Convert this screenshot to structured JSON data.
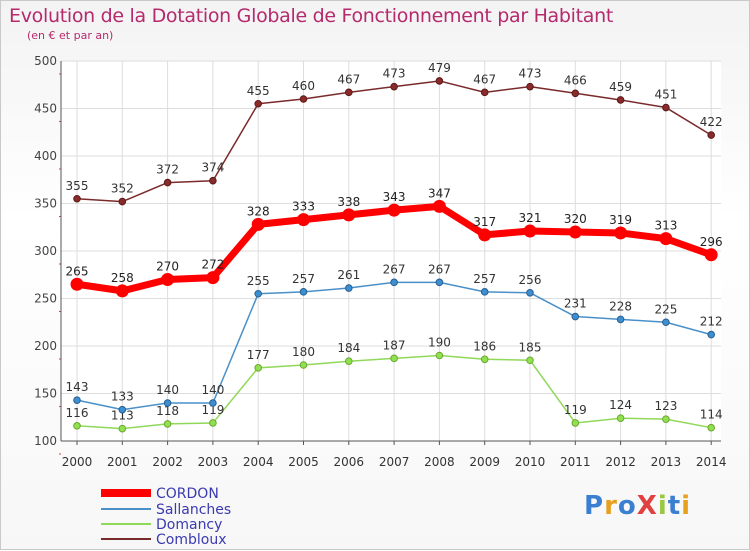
{
  "title": "Evolution de la Dotation Globale de Fonctionnement par Habitant",
  "subtitle": "(en € et par an)",
  "brand": "ProXiti",
  "chart_data": {
    "type": "line",
    "title": "Evolution de la Dotation Globale de Fonctionnement par Habitant",
    "ylabel": "(en € et par an)",
    "xlabel": "",
    "ylim": [
      100,
      500
    ],
    "yticks": [
      100,
      150,
      200,
      250,
      300,
      350,
      400,
      450,
      500
    ],
    "grid": true,
    "legend_position": "bottom-left",
    "categories": [
      "2000",
      "2001",
      "2002",
      "2003",
      "2004",
      "2005",
      "2006",
      "2007",
      "2008",
      "2009",
      "2010",
      "2011",
      "2012",
      "2013",
      "2014"
    ],
    "series": [
      {
        "name": "CORDON",
        "color": "#ff0000",
        "values": [
          265,
          258,
          270,
          272,
          328,
          333,
          338,
          343,
          347,
          317,
          321,
          320,
          319,
          313,
          296
        ]
      },
      {
        "name": "Sallanches",
        "color": "#4a90c8",
        "values": [
          143,
          133,
          140,
          140,
          255,
          257,
          261,
          267,
          267,
          257,
          256,
          231,
          228,
          225,
          212
        ]
      },
      {
        "name": "Domancy",
        "color": "#90d858",
        "values": [
          116,
          113,
          118,
          119,
          177,
          180,
          184,
          187,
          190,
          186,
          185,
          119,
          124,
          123,
          114
        ]
      },
      {
        "name": "Combloux",
        "color": "#7a2a2a",
        "values": [
          355,
          352,
          372,
          374,
          455,
          460,
          467,
          473,
          479,
          467,
          473,
          466,
          459,
          451,
          422
        ]
      }
    ]
  }
}
